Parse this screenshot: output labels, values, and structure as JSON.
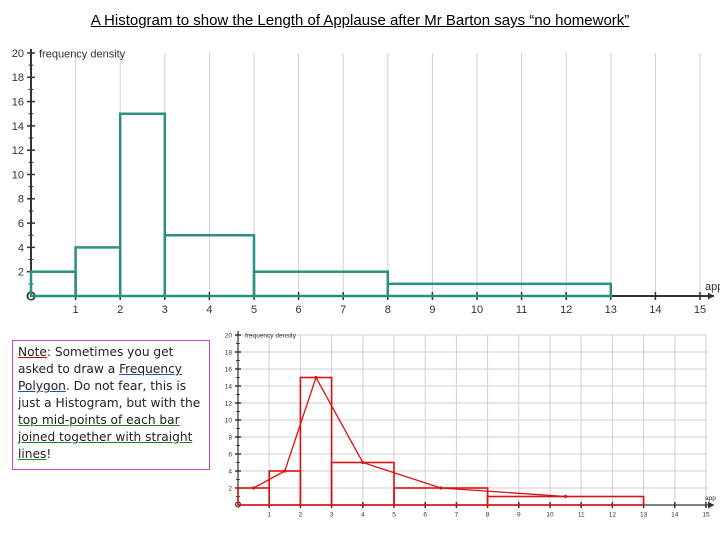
{
  "title": "A Histogram to show the Length of Applause after Mr Barton says “no homework”",
  "note": {
    "label": "Note",
    "sep": ": ",
    "t1": "Sometimes you get asked to draw a ",
    "link": "Frequency Polygon",
    "t2": ". Do not fear, this is just a Histogram, but with the ",
    "green": "top mid-points of each bar joined together with straight lines",
    "end": "!"
  },
  "chart_data": [
    {
      "type": "bar",
      "subtype": "histogram",
      "title": "",
      "ylabel": "frequency density",
      "xlabel": "app",
      "origin_label": "O",
      "xlim": [
        0,
        15
      ],
      "ylim": [
        0,
        20
      ],
      "xticks": [
        1,
        2,
        3,
        4,
        5,
        6,
        7,
        8,
        9,
        10,
        11,
        12,
        13,
        14,
        15
      ],
      "yticks": [
        2,
        4,
        6,
        8,
        10,
        12,
        14,
        16,
        18,
        20
      ],
      "color": "#2a9080",
      "bins": [
        {
          "from": 0,
          "to": 1,
          "density": 2
        },
        {
          "from": 1,
          "to": 2,
          "density": 4
        },
        {
          "from": 2,
          "to": 3,
          "density": 15
        },
        {
          "from": 3,
          "to": 5,
          "density": 5
        },
        {
          "from": 5,
          "to": 8,
          "density": 2
        },
        {
          "from": 8,
          "to": 13,
          "density": 1
        }
      ]
    },
    {
      "type": "bar",
      "subtype": "histogram with frequency polygon",
      "title": "",
      "ylabel": "frequency density",
      "xlabel": "app",
      "origin_label": "O",
      "xlim": [
        0,
        15
      ],
      "ylim": [
        0,
        20
      ],
      "xticks": [
        1,
        2,
        3,
        4,
        5,
        6,
        7,
        8,
        9,
        10,
        11,
        12,
        13,
        14,
        15
      ],
      "yticks": [
        2,
        4,
        6,
        8,
        10,
        12,
        14,
        16,
        18,
        20
      ],
      "color": "#dd1111",
      "bins": [
        {
          "from": 0,
          "to": 1,
          "density": 2
        },
        {
          "from": 1,
          "to": 2,
          "density": 4
        },
        {
          "from": 2,
          "to": 3,
          "density": 15
        },
        {
          "from": 3,
          "to": 5,
          "density": 5
        },
        {
          "from": 5,
          "to": 8,
          "density": 2
        },
        {
          "from": 8,
          "to": 13,
          "density": 1
        }
      ],
      "polygon": {
        "x": [
          0.5,
          1.5,
          2.5,
          4,
          6.5,
          10.5
        ],
        "y": [
          2,
          4,
          15,
          5,
          2,
          1
        ]
      }
    }
  ]
}
